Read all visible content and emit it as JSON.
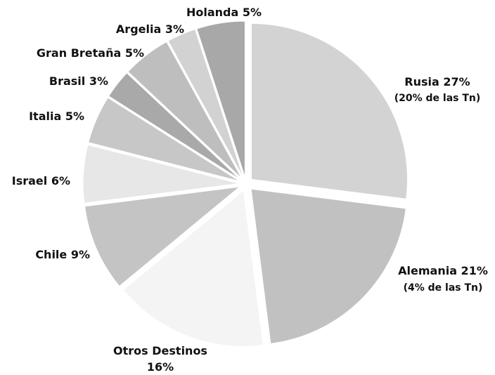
{
  "chart_data": {
    "type": "pie",
    "title": "",
    "legend": "none",
    "slices": [
      {
        "label": "Rusia",
        "value": 27,
        "value_label": "Rusia 27%",
        "note": "(20% de las Tn)",
        "color": "#d3d3d3"
      },
      {
        "label": "Alemania",
        "value": 21,
        "value_label": "Alemania 21%",
        "note": "(4% de las Tn)",
        "color": "#c1c1c1"
      },
      {
        "label": "Otros Destinos",
        "value": 16,
        "value_label": "Otros Destinos",
        "value_label_line2": "16%",
        "color": "#f4f4f4"
      },
      {
        "label": "Chile",
        "value": 9,
        "value_label": "Chile 9%",
        "color": "#c4c4c4"
      },
      {
        "label": "Israel",
        "value": 6,
        "value_label": "Israel 6%",
        "color": "#e7e7e7"
      },
      {
        "label": "Italia",
        "value": 5,
        "value_label": "Italia 5%",
        "color": "#c7c7c7"
      },
      {
        "label": "Brasil",
        "value": 3,
        "value_label": "Brasil 3%",
        "color": "#a9a9a9"
      },
      {
        "label": "Gran Bretaña",
        "value": 5,
        "value_label": "Gran Bretaña 5%",
        "color": "#bebebe"
      },
      {
        "label": "Argelia",
        "value": 3,
        "value_label": "Argelia 3%",
        "color": "#d2d2d2"
      },
      {
        "label": "Holanda",
        "value": 5,
        "value_label": "Holanda 5%",
        "color": "#a8a8a8"
      }
    ]
  }
}
